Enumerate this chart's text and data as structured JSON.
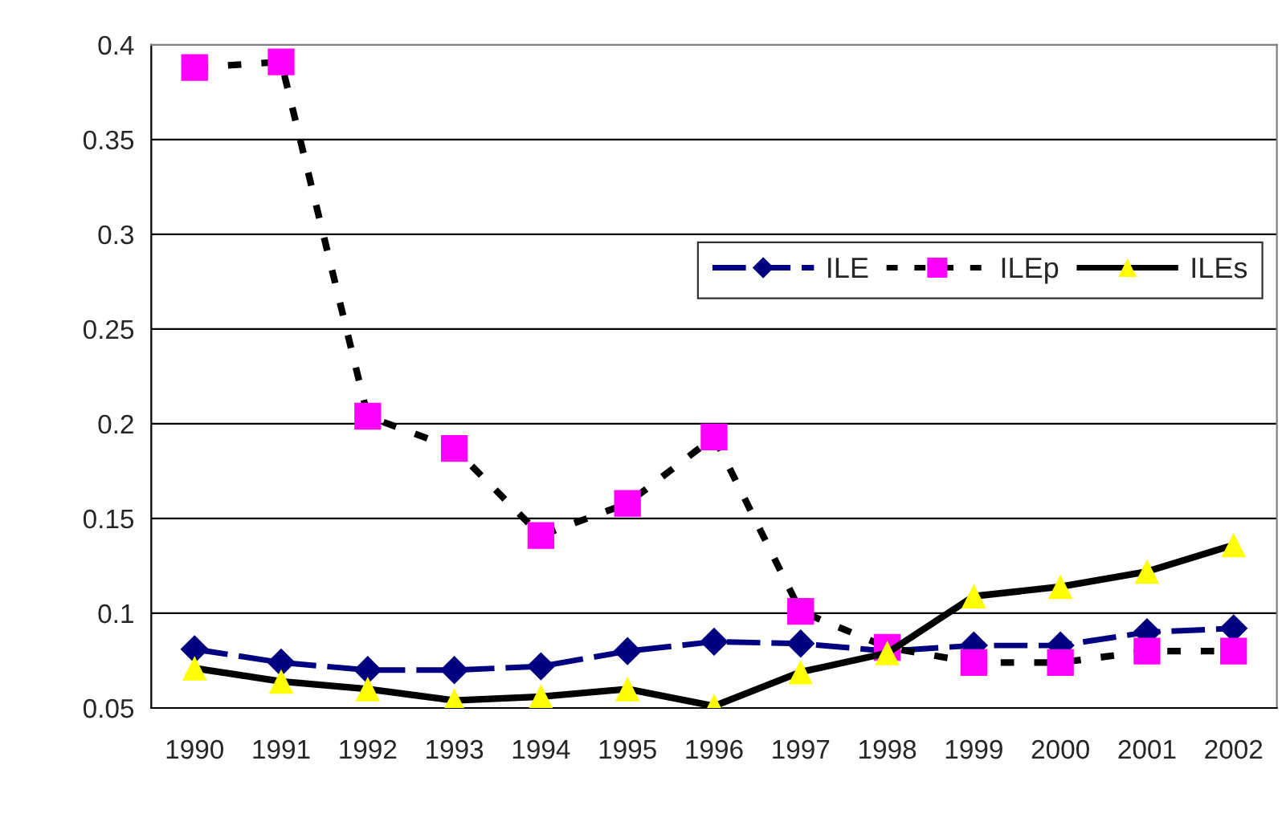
{
  "chart_data": {
    "type": "line",
    "categories": [
      "1990",
      "1991",
      "1992",
      "1993",
      "1994",
      "1995",
      "1996",
      "1997",
      "1998",
      "1999",
      "2000",
      "2001",
      "2002"
    ],
    "series": [
      {
        "name": "ILE",
        "color": "#000080",
        "marker": "diamond",
        "line_style": "dashed",
        "values": [
          0.081,
          0.074,
          0.07,
          0.07,
          0.072,
          0.08,
          0.085,
          0.084,
          0.08,
          0.083,
          0.083,
          0.09,
          0.092
        ]
      },
      {
        "name": "ILEp",
        "color": "#ff00ff",
        "marker": "square",
        "line_style": "dotted",
        "values": [
          0.388,
          0.391,
          0.204,
          0.187,
          0.141,
          0.158,
          0.193,
          0.101,
          0.082,
          0.074,
          0.074,
          0.08,
          0.08
        ]
      },
      {
        "name": "ILEs",
        "color": "#ffff00",
        "marker": "triangle",
        "line_style": "solid",
        "values": [
          0.071,
          0.064,
          0.06,
          0.054,
          0.056,
          0.06,
          0.051,
          0.069,
          0.079,
          0.109,
          0.114,
          0.122,
          0.136
        ]
      }
    ],
    "ylim": [
      0.05,
      0.4
    ],
    "yticks": [
      {
        "value": 0.05,
        "label": "0.05"
      },
      {
        "value": 0.1,
        "label": "0.1"
      },
      {
        "value": 0.15,
        "label": "0.15"
      },
      {
        "value": 0.2,
        "label": "0.2"
      },
      {
        "value": 0.25,
        "label": "0.25"
      },
      {
        "value": 0.3,
        "label": "0.3"
      },
      {
        "value": 0.35,
        "label": "0.35"
      },
      {
        "value": 0.4,
        "label": "0.4"
      }
    ],
    "grid": "y",
    "legend": "right"
  }
}
